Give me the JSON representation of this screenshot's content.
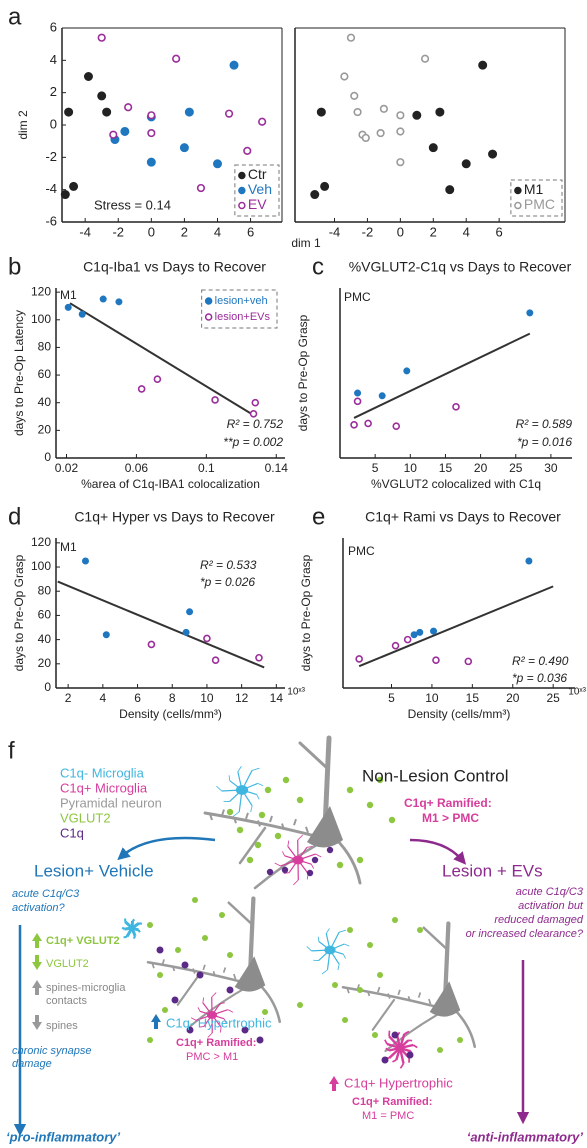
{
  "chart_data": [
    {
      "type": "scatter",
      "panel": "a",
      "xlabel": "dim 1",
      "ylabel": "dim 2",
      "xlim": [
        -5.4,
        7.9
      ],
      "ylim": [
        -6,
        6
      ],
      "xticks": [
        -4,
        -2,
        0,
        2,
        4,
        6
      ],
      "yticks": [
        -6,
        -4,
        -2,
        0,
        2,
        4,
        6
      ],
      "box": true,
      "legend": "lower right",
      "annotations": [
        "Stress = 0.14"
      ],
      "series": [
        {
          "name": "Ctr",
          "color": "#222222",
          "marker": "filled",
          "x": [
            -5.2,
            -4.7,
            -5.0,
            -3.8,
            -3.0,
            -2.7
          ],
          "values": [
            -4.3,
            -3.8,
            0.8,
            3.0,
            1.8,
            0.8
          ]
        },
        {
          "name": "Veh",
          "color": "#1f77c0",
          "marker": "filled",
          "x": [
            -1.6,
            -2.2,
            0,
            0,
            2.0,
            2.3,
            4.0,
            5.0
          ],
          "values": [
            -0.4,
            -0.9,
            0.5,
            -2.3,
            -1.4,
            0.8,
            -2.4,
            3.7
          ]
        },
        {
          "name": "EV",
          "color": "#9b2d9b",
          "marker": "open",
          "x": [
            -3.0,
            -2.3,
            -1.4,
            0,
            0,
            1.5,
            3.0,
            4.7,
            6.7,
            5.8
          ],
          "values": [
            5.4,
            -0.6,
            1.1,
            -0.5,
            0.6,
            4.1,
            -3.9,
            0.7,
            0.2,
            -1.6
          ]
        }
      ]
    },
    {
      "type": "scatter",
      "xlim": [
        -6.4,
        10
      ],
      "ylim": [
        -6,
        6
      ],
      "xticks": [
        -4,
        -2,
        0,
        2,
        4,
        6
      ],
      "box": true,
      "legend": "lower right",
      "series": [
        {
          "name": "M1",
          "color": "#222222",
          "marker": "filled",
          "x": [
            -5.2,
            -4.6,
            -4.8,
            1.0,
            2.0,
            2.4,
            3.0,
            4.0,
            5.0,
            5.6
          ],
          "values": [
            -4.3,
            -3.8,
            0.8,
            0.6,
            -1.4,
            0.8,
            -4.0,
            -2.4,
            3.7,
            -1.8
          ]
        },
        {
          "name": "PMC",
          "color": "#999999",
          "marker": "open",
          "x": [
            -3.4,
            -3.0,
            -2.8,
            -2.6,
            -2.3,
            -2.1,
            -1.2,
            -1.0,
            0,
            0,
            0,
            1.5
          ],
          "values": [
            3.0,
            5.4,
            1.8,
            0.8,
            -0.6,
            -0.8,
            -0.5,
            1.0,
            0.6,
            -0.4,
            -2.3,
            4.1
          ]
        }
      ]
    },
    {
      "type": "scatter",
      "panel": "b",
      "title": "C1q-Iba1 vs Days to Recover",
      "xlabel": "%area of C1q-IBA1 colocalization",
      "ylabel": "days to Pre-Op Latency",
      "xlim": [
        0.014,
        0.145
      ],
      "ylim": [
        0,
        123
      ],
      "xticks": [
        0.02,
        0.06,
        0.1,
        0.14
      ],
      "yticks": [
        0,
        20,
        40,
        60,
        80,
        100,
        120
      ],
      "legend": "upper right",
      "annotations": [
        "M1",
        "R² = 0.752",
        "**p = 0.002"
      ],
      "trendline": {
        "x": [
          0.022,
          0.127
        ],
        "values": [
          112,
          31
        ],
        "color": "#333333"
      },
      "series": [
        {
          "name": "lesion+veh",
          "color": "#1f77c0",
          "marker": "filled",
          "x": [
            0.021,
            0.029,
            0.041,
            0.05
          ],
          "values": [
            109,
            104,
            115,
            113
          ]
        },
        {
          "name": "lesion+EVs",
          "color": "#9b2d9b",
          "marker": "open",
          "x": [
            0.063,
            0.072,
            0.105,
            0.127,
            0.128
          ],
          "values": [
            50,
            57,
            42,
            32,
            40
          ]
        }
      ]
    },
    {
      "type": "scatter",
      "panel": "c",
      "title": "%VGLUT2-C1q vs Days to Recover",
      "xlabel": "%VGLUT2 colocalized with C1q",
      "ylabel": "days to Pre-Op Grasp",
      "xlim": [
        0,
        33
      ],
      "ylim": [
        0,
        123
      ],
      "xticks": [
        5,
        10,
        15,
        20,
        25,
        30
      ],
      "annotations": [
        "PMC",
        "R² = 0.589",
        "*p = 0.016"
      ],
      "trendline": {
        "x": [
          2,
          27
        ],
        "values": [
          29,
          90
        ],
        "color": "#333333"
      },
      "series": [
        {
          "name": "lesion+veh",
          "color": "#1f77c0",
          "marker": "filled",
          "x": [
            2.5,
            6,
            9.5,
            27
          ],
          "values": [
            47,
            45,
            63,
            105
          ]
        },
        {
          "name": "lesion+EVs",
          "color": "#9b2d9b",
          "marker": "open",
          "x": [
            2,
            2.5,
            4,
            8,
            16.5
          ],
          "values": [
            24,
            41,
            25,
            23,
            37
          ]
        }
      ]
    },
    {
      "type": "scatter",
      "panel": "d",
      "title": "C1q+ Hyper vs Days to Recover",
      "xlabel": "Density (cells/mm³)",
      "ylabel": "days to Pre-Op Grasp",
      "x_multiplier": "10ˣ³",
      "xlim": [
        1.3,
        14.5
      ],
      "ylim": [
        0,
        124
      ],
      "xticks": [
        2,
        4,
        6,
        8,
        10,
        12,
        14
      ],
      "yticks": [
        0,
        20,
        40,
        60,
        80,
        100,
        120
      ],
      "annotations": [
        "M1",
        "R² = 0.533",
        "*p = 0.026"
      ],
      "trendline": {
        "x": [
          1.4,
          13.3
        ],
        "values": [
          88,
          17
        ],
        "color": "#333333"
      },
      "series": [
        {
          "name": "lesion+veh",
          "color": "#1f77c0",
          "marker": "filled",
          "x": [
            3,
            4.2,
            8.8,
            9
          ],
          "values": [
            105,
            44,
            46,
            63
          ]
        },
        {
          "name": "lesion+EVs",
          "color": "#9b2d9b",
          "marker": "open",
          "x": [
            6.8,
            10,
            10.5,
            13
          ],
          "values": [
            36,
            41,
            23,
            25
          ]
        }
      ]
    },
    {
      "type": "scatter",
      "panel": "e",
      "title": "C1q+ Rami vs Days to Recover",
      "xlabel": "Density (cells/mm³)",
      "ylabel": "days to Pre-Op Grasp",
      "x_multiplier": "10ˣ³",
      "xlim": [
        -1,
        27.7
      ],
      "ylim": [
        0,
        124
      ],
      "xticks": [
        5,
        10,
        15,
        20,
        25
      ],
      "annotations": [
        "PMC",
        "R² = 0.490",
        "*p = 0.036"
      ],
      "trendline": {
        "x": [
          1,
          25
        ],
        "values": [
          18,
          84
        ],
        "color": "#333333"
      },
      "series": [
        {
          "name": "lesion+veh",
          "color": "#1f77c0",
          "marker": "filled",
          "x": [
            7.8,
            8.5,
            10.2,
            22
          ],
          "values": [
            44,
            46,
            47,
            105
          ]
        },
        {
          "name": "lesion+EVs",
          "color": "#9b2d9b",
          "marker": "open",
          "x": [
            1,
            5.5,
            7,
            10.5,
            14.5
          ],
          "values": [
            24,
            35,
            40,
            23,
            22
          ]
        }
      ]
    }
  ],
  "diagram": {
    "label": "f",
    "legend": [
      "C1q- Microglia",
      "C1q+ Microglia",
      "Pyramidal neuron",
      "VGLUT2",
      "C1q"
    ],
    "control": {
      "title": "Non-Lesion Control",
      "ramified": "C1q+ Ramified:",
      "ramified_result": "M1 > PMC"
    },
    "vehicle": {
      "title": "Lesion+ Vehicle",
      "question": [
        "acute C1q/C3",
        "activation?"
      ],
      "changes": [
        "C1q+ VGLUT2",
        "VGLUT2",
        "spines-microglia",
        "contacts",
        "spines"
      ],
      "outcome": [
        "chronic synapse",
        "damage"
      ],
      "hypertrophic": "C1q- Hypertrophic",
      "ramified": "C1q+ Ramified:",
      "ramified_result": "PMC > M1",
      "label": "‘pro-inflammatory’"
    },
    "evs": {
      "title": "Lesion + EVs",
      "question": [
        "acute C1q/C3",
        "activation but",
        "reduced damaged",
        "or increased clearance?"
      ],
      "hypertrophic": "C1q+ Hypertrophic",
      "ramified": "C1q+ Ramified:",
      "ramified_result": "M1 = PMC",
      "label": "‘anti-inflammatory’"
    }
  }
}
